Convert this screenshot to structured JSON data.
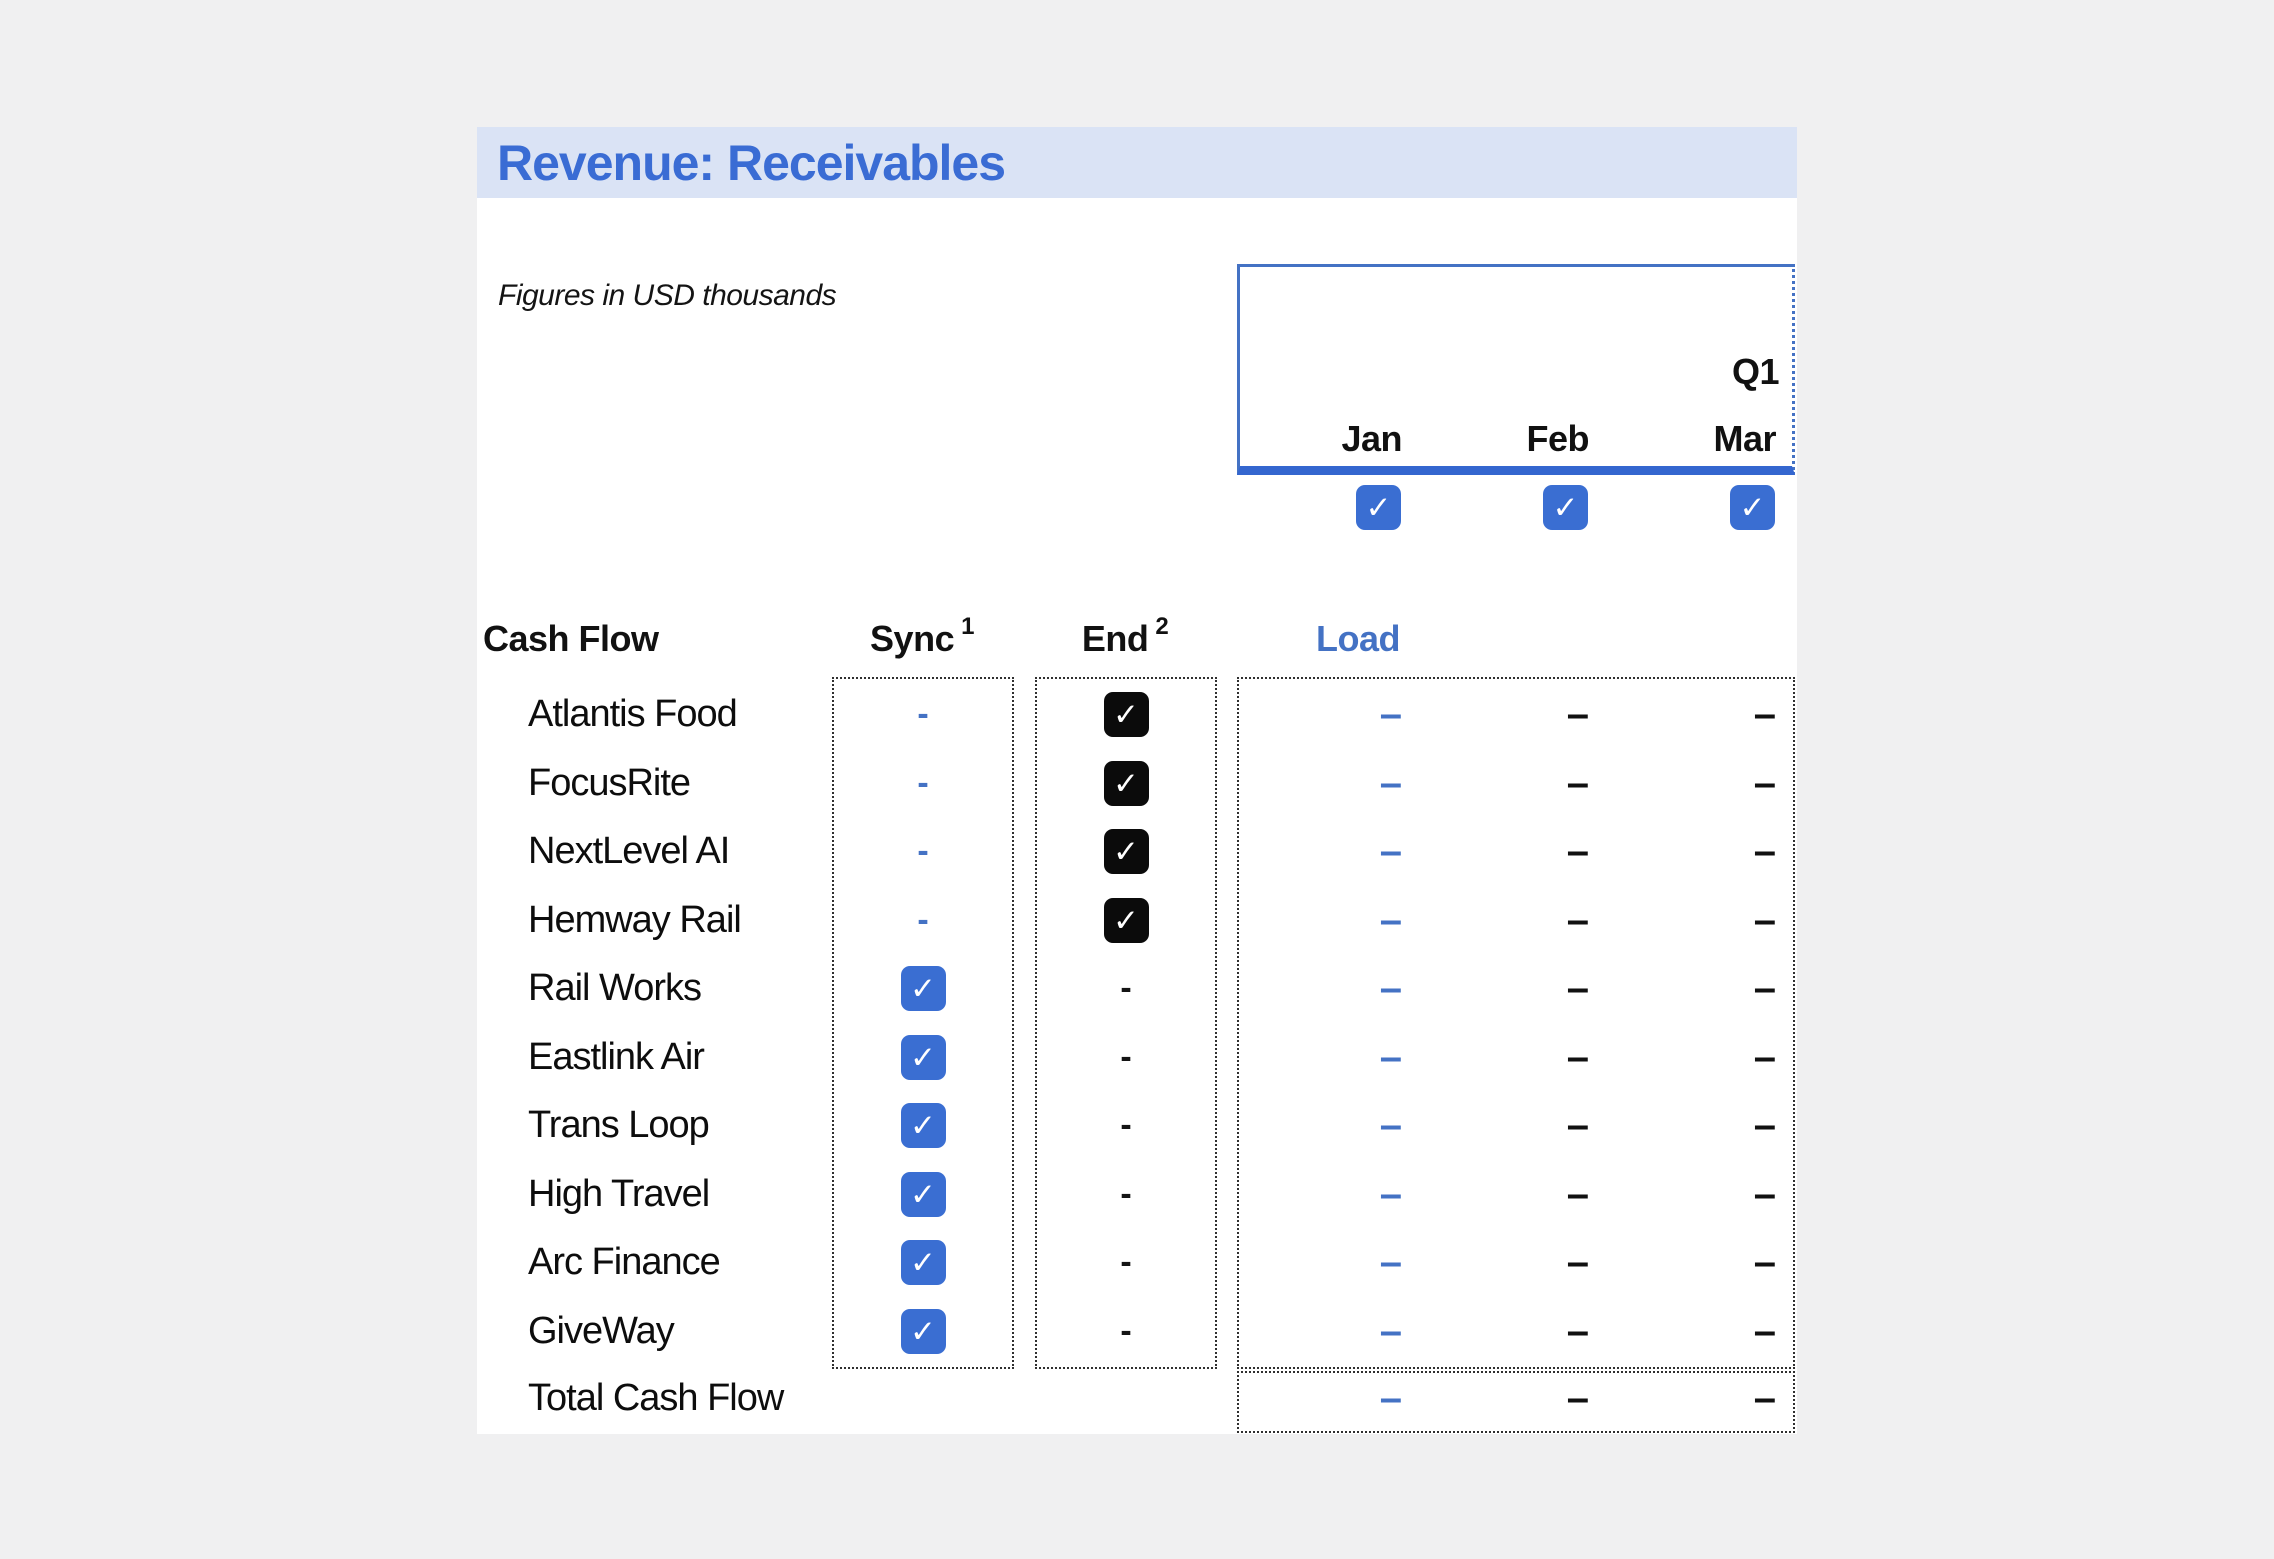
{
  "title": "Revenue: Receivables",
  "subtitle": "Figures in USD thousands",
  "period": {
    "quarter_label": "Q1",
    "months": [
      "Jan",
      "Feb",
      "Mar"
    ],
    "month_toggles": [
      true,
      true,
      true
    ]
  },
  "columns": {
    "cash_flow": "Cash Flow",
    "sync": "Sync",
    "sync_footnote": "1",
    "end": "End",
    "end_footnote": "2",
    "load": "Load"
  },
  "rows": [
    {
      "name": "Atlantis Food",
      "sync": "dash",
      "end": "checked",
      "values": [
        "–",
        "–",
        "–"
      ]
    },
    {
      "name": "FocusRite",
      "sync": "dash",
      "end": "checked",
      "values": [
        "–",
        "–",
        "–"
      ]
    },
    {
      "name": "NextLevel AI",
      "sync": "dash",
      "end": "checked",
      "values": [
        "–",
        "–",
        "–"
      ]
    },
    {
      "name": "Hemway Rail",
      "sync": "dash",
      "end": "checked",
      "values": [
        "–",
        "–",
        "–"
      ]
    },
    {
      "name": "Rail Works",
      "sync": "checked",
      "end": "dash",
      "values": [
        "–",
        "–",
        "–"
      ]
    },
    {
      "name": "Eastlink Air",
      "sync": "checked",
      "end": "dash",
      "values": [
        "–",
        "–",
        "–"
      ]
    },
    {
      "name": "Trans Loop",
      "sync": "checked",
      "end": "dash",
      "values": [
        "–",
        "–",
        "–"
      ]
    },
    {
      "name": "High Travel",
      "sync": "checked",
      "end": "dash",
      "values": [
        "–",
        "–",
        "–"
      ]
    },
    {
      "name": "Arc Finance",
      "sync": "checked",
      "end": "dash",
      "values": [
        "–",
        "–",
        "–"
      ]
    },
    {
      "name": "GiveWay",
      "sync": "checked",
      "end": "dash",
      "values": [
        "–",
        "–",
        "–"
      ]
    }
  ],
  "total": {
    "name": "Total Cash Flow",
    "values": [
      "–",
      "–",
      "–"
    ]
  },
  "colors": {
    "title_text": "#3a6cd4",
    "title_band": "#dae3f5",
    "accent_blue": "#4472c4",
    "checkbox_blue": "#3a6ed2",
    "checkbox_black": "#0b0b0b",
    "jan_dash": "#4472c4",
    "feb_mar_dash": "#111111",
    "page_background": "#f0f0f1"
  }
}
